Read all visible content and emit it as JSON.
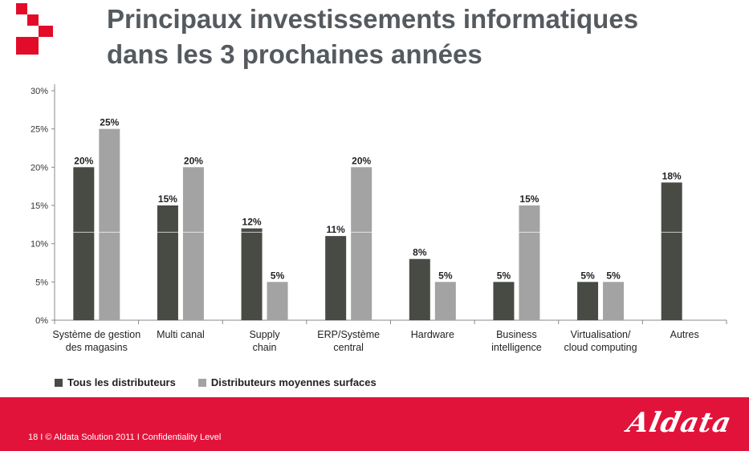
{
  "header": {
    "title_line1": "Principaux investissements informatiques",
    "title_line2": "dans les 3 prochaines années"
  },
  "colors": {
    "brand_red": "#e2133a",
    "series_dark": "#474b44",
    "series_light": "#a3a3a3",
    "title_gray": "#555a5f"
  },
  "chart_data": {
    "type": "bar",
    "title": "Principaux investissements informatiques dans les 3 prochaines années",
    "categories": [
      [
        "Système de gestion",
        "des magasins"
      ],
      [
        "Multi canal"
      ],
      [
        "Supply",
        "chain"
      ],
      [
        "ERP/Système",
        "central"
      ],
      [
        "Hardware"
      ],
      [
        "Business",
        "intelligence"
      ],
      [
        "Virtualisation/",
        "cloud computing"
      ],
      [
        "Autres"
      ]
    ],
    "series": [
      {
        "name": "Tous les distributeurs",
        "color": "#474b44",
        "values": [
          20,
          15,
          12,
          11,
          8,
          5,
          5,
          18
        ]
      },
      {
        "name": "Distributeurs moyennes surfaces",
        "color": "#a3a3a3",
        "values": [
          25,
          20,
          5,
          20,
          5,
          15,
          5,
          null
        ]
      }
    ],
    "y_ticks": [
      "0%",
      "5%",
      "10%",
      "15%",
      "20%",
      "25%",
      "30%"
    ],
    "ylim": [
      0,
      30
    ],
    "grid": false,
    "legend_position": "bottom-left"
  },
  "footer": {
    "text": "18 I © Aldata Solution 2011 I Confidentiality Level",
    "brand": "Aldata"
  }
}
